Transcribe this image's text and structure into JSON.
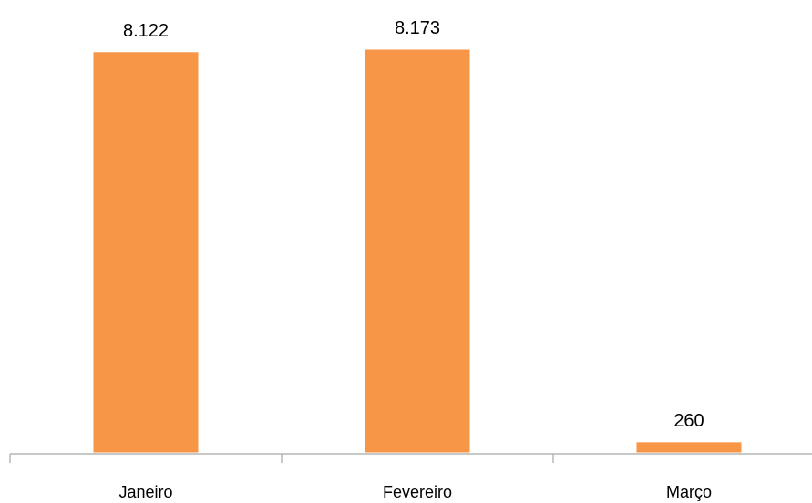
{
  "chart_data": {
    "type": "bar",
    "categories": [
      "Janeiro",
      "Fevereiro",
      "Março"
    ],
    "values": [
      8122,
      8173,
      260
    ],
    "data_labels": [
      "8.122",
      "8.173",
      "260"
    ],
    "title": "",
    "xlabel": "",
    "ylabel": "",
    "ylim": [
      0,
      8173
    ],
    "grid": false,
    "legend": "none",
    "colors": {
      "bar": "#F79646",
      "bar_border": "#FFFFFF",
      "axis": "#A6A6A6"
    }
  }
}
